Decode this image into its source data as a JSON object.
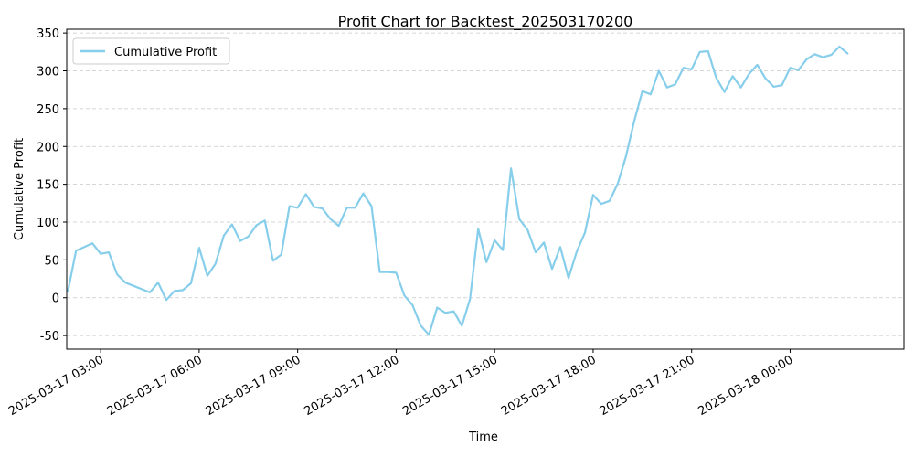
{
  "chart_data": {
    "type": "line",
    "title": "Profit Chart for Backtest_202503170200",
    "xlabel": "Time",
    "ylabel": "Cumulative Profit",
    "xlim": [
      "2025-03-17 01:58",
      "2025-03-18 03:28"
    ],
    "ylim": [
      -68,
      355
    ],
    "grid": "y-axis dashed",
    "legend_position": "top-left",
    "x_ticks": [
      "2025-03-17 03:00",
      "2025-03-17 06:00",
      "2025-03-17 09:00",
      "2025-03-17 12:00",
      "2025-03-17 15:00",
      "2025-03-17 18:00",
      "2025-03-17 21:00",
      "2025-03-18 00:00"
    ],
    "y_ticks": [
      -50,
      0,
      50,
      100,
      150,
      200,
      250,
      300,
      350
    ],
    "series": [
      {
        "name": "Cumulative Profit",
        "color": "#87ceeb",
        "x": [
          "2025-03-17 02:00",
          "2025-03-17 02:15",
          "2025-03-17 02:30",
          "2025-03-17 02:45",
          "2025-03-17 03:00",
          "2025-03-17 03:15",
          "2025-03-17 03:30",
          "2025-03-17 03:45",
          "2025-03-17 04:30",
          "2025-03-17 04:45",
          "2025-03-17 05:00",
          "2025-03-17 05:15",
          "2025-03-17 05:30",
          "2025-03-17 05:45",
          "2025-03-17 06:00",
          "2025-03-17 06:15",
          "2025-03-17 06:30",
          "2025-03-17 06:45",
          "2025-03-17 07:00",
          "2025-03-17 07:15",
          "2025-03-17 07:30",
          "2025-03-17 07:45",
          "2025-03-17 08:00",
          "2025-03-17 08:15",
          "2025-03-17 08:30",
          "2025-03-17 08:45",
          "2025-03-17 09:00",
          "2025-03-17 09:15",
          "2025-03-17 09:30",
          "2025-03-17 09:45",
          "2025-03-17 10:00",
          "2025-03-17 10:15",
          "2025-03-17 10:30",
          "2025-03-17 10:45",
          "2025-03-17 11:00",
          "2025-03-17 11:15",
          "2025-03-17 11:30",
          "2025-03-17 11:45",
          "2025-03-17 12:00",
          "2025-03-17 12:15",
          "2025-03-17 12:30",
          "2025-03-17 12:45",
          "2025-03-17 13:00",
          "2025-03-17 13:15",
          "2025-03-17 13:30",
          "2025-03-17 13:45",
          "2025-03-17 14:00",
          "2025-03-17 14:15",
          "2025-03-17 14:30",
          "2025-03-17 14:45",
          "2025-03-17 15:00",
          "2025-03-17 15:15",
          "2025-03-17 15:30",
          "2025-03-17 15:45",
          "2025-03-17 16:00",
          "2025-03-17 16:15",
          "2025-03-17 16:30",
          "2025-03-17 16:45",
          "2025-03-17 17:00",
          "2025-03-17 17:15",
          "2025-03-17 17:30",
          "2025-03-17 17:45",
          "2025-03-17 18:00",
          "2025-03-17 18:15",
          "2025-03-17 18:30",
          "2025-03-17 18:45",
          "2025-03-17 19:00",
          "2025-03-17 19:15",
          "2025-03-17 19:30",
          "2025-03-17 19:45",
          "2025-03-17 20:00",
          "2025-03-17 20:15",
          "2025-03-17 20:30",
          "2025-03-17 20:45",
          "2025-03-17 21:00",
          "2025-03-17 21:15",
          "2025-03-17 21:30",
          "2025-03-17 21:45",
          "2025-03-17 22:00",
          "2025-03-17 22:15",
          "2025-03-17 22:30",
          "2025-03-17 22:45",
          "2025-03-17 23:00",
          "2025-03-17 23:15",
          "2025-03-17 23:30",
          "2025-03-17 23:45",
          "2025-03-18 00:00",
          "2025-03-18 00:15",
          "2025-03-18 00:30",
          "2025-03-18 00:45",
          "2025-03-18 01:00",
          "2025-03-18 01:15",
          "2025-03-18 01:30",
          "2025-03-18 01:45"
        ],
        "y": [
          8,
          62,
          67,
          72,
          58,
          60,
          31,
          20,
          7,
          20,
          -3,
          9,
          10,
          19,
          66,
          29,
          45,
          82,
          97,
          75,
          81,
          96,
          102,
          49,
          57,
          121,
          119,
          137,
          120,
          118,
          104,
          95,
          119,
          119,
          138,
          121,
          34,
          34,
          33,
          3,
          -10,
          -37,
          -49,
          -13,
          -20,
          -18,
          -37,
          -2,
          91,
          47,
          76,
          63,
          171,
          104,
          90,
          60,
          73,
          38,
          67,
          26,
          61,
          86,
          136,
          124,
          128,
          151,
          187,
          233,
          273,
          269,
          300,
          278,
          282,
          304,
          302,
          325,
          326,
          291,
          272,
          293,
          278,
          296,
          308,
          290,
          279,
          281,
          304,
          301,
          315,
          322,
          318,
          321,
          332,
          323
        ]
      }
    ]
  }
}
